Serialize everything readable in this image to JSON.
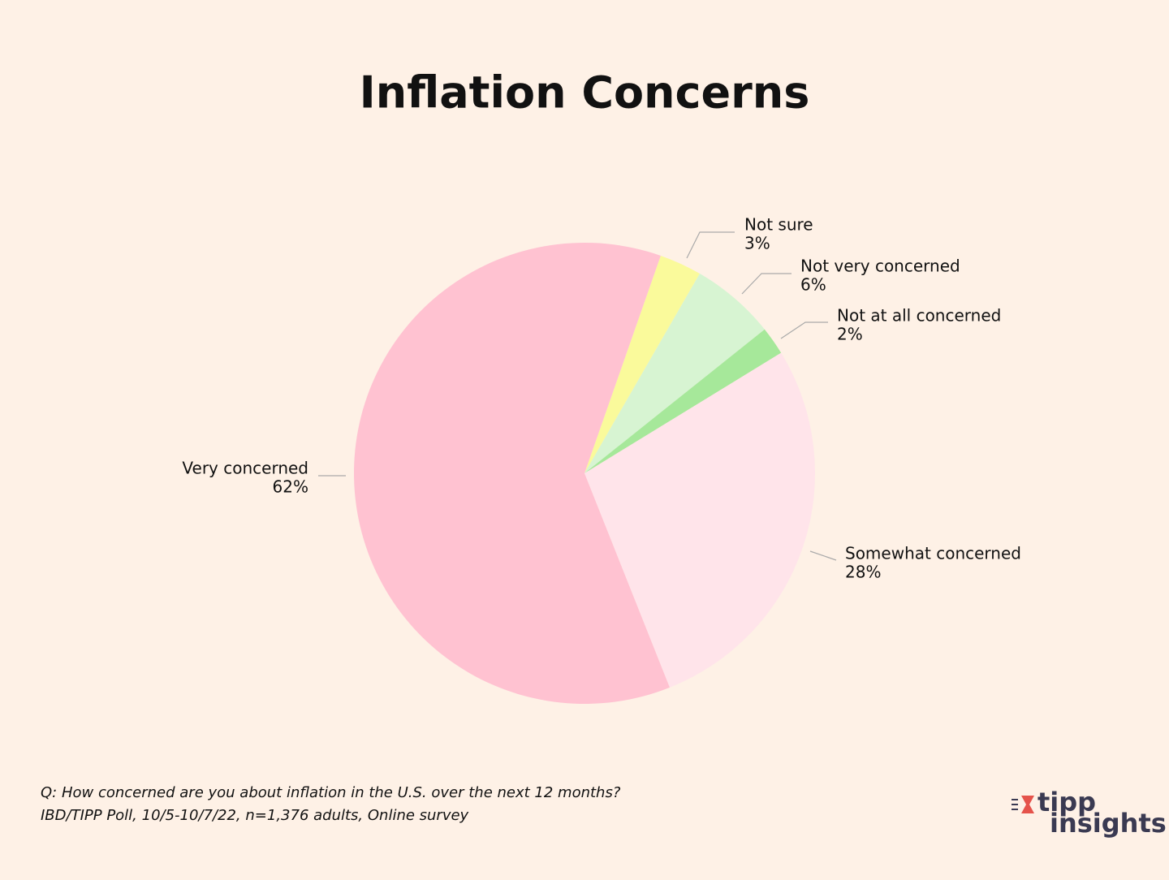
{
  "chart_data": {
    "type": "pie",
    "title": "Inflation Concerns",
    "categories": [
      "Not sure",
      "Not very concerned",
      "Not at all concerned",
      "Somewhat concerned",
      "Very concerned"
    ],
    "values": [
      3,
      6,
      2,
      28,
      62
    ],
    "value_labels": [
      "3%",
      "6%",
      "2%",
      "28%",
      "62%"
    ],
    "colors": [
      "#fafa9b",
      "#d7f4d2",
      "#a6e89a",
      "#ffe4ea",
      "#ffc2d1"
    ],
    "notes": [
      "Q:  How concerned are you about inflation in the U.S. over the next 12 months?",
      "IBD/TIPP Poll, 10/5-10/7/22, n=1,376 adults, Online survey"
    ]
  },
  "logo": {
    "line1": "tipp",
    "line2": "insights"
  }
}
